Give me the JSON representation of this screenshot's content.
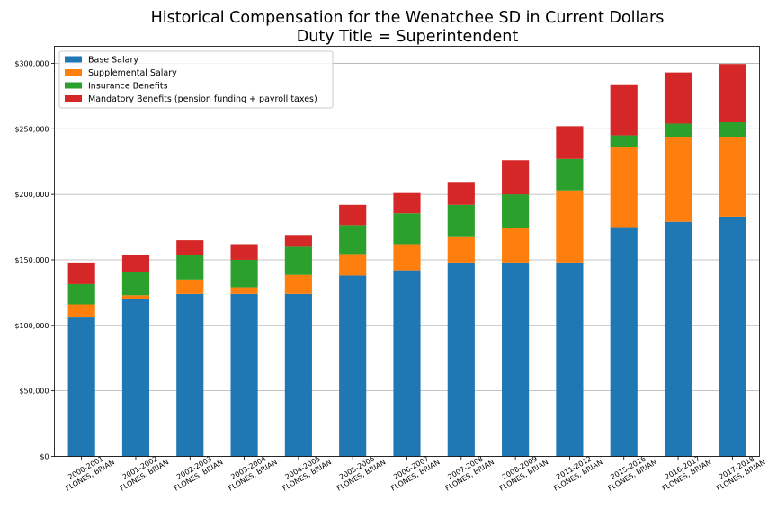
{
  "chart_data": {
    "type": "bar",
    "stacked": true,
    "title": "Historical Compensation for the Wenatchee SD in Current Dollars",
    "subtitle": "Duty Title = Superintendent",
    "xlabel": "",
    "ylabel": "",
    "ylim": [
      0,
      313000
    ],
    "yticks": [
      0,
      50000,
      100000,
      150000,
      200000,
      250000,
      300000
    ],
    "ytick_labels": [
      "$0",
      "$50,000",
      "$100,000",
      "$150,000",
      "$200,000",
      "$250,000",
      "$300,000"
    ],
    "grid": "horizontal",
    "legend_position": "top-left",
    "categories": [
      [
        "2000-2001",
        "FLONES, BRIAN"
      ],
      [
        "2001-2002",
        "FLONES, BRIAN"
      ],
      [
        "2002-2003",
        "FLONES, BRIAN"
      ],
      [
        "2003-2004",
        "FLONES, BRIAN"
      ],
      [
        "2004-2005",
        "FLONES, BRIAN"
      ],
      [
        "2005-2006",
        "FLONES, BRIAN"
      ],
      [
        "2006-2007",
        "FLONES, BRIAN"
      ],
      [
        "2007-2008",
        "FLONES, BRIAN"
      ],
      [
        "2008-2009",
        "FLONES, BRIAN"
      ],
      [
        "2011-2012",
        "FLONES, BRIAN"
      ],
      [
        "2015-2016",
        "FLONES, BRIAN"
      ],
      [
        "2016-2017",
        "FLONES, BRIAN"
      ],
      [
        "2017-2018",
        "FLONES, BRIAN"
      ]
    ],
    "series": [
      {
        "name": "Base Salary",
        "color": "#1f77b4",
        "values": [
          106000,
          120000,
          124000,
          124000,
          124000,
          138000,
          142000,
          148000,
          148000,
          148000,
          175000,
          179000,
          183000
        ]
      },
      {
        "name": "Supplemental Salary",
        "color": "#ff7f0e",
        "values": [
          10000,
          3000,
          11000,
          5000,
          14500,
          16500,
          20000,
          20000,
          26000,
          55000,
          61000,
          65000,
          61000
        ]
      },
      {
        "name": "Insurance Benefits",
        "color": "#2ca02c",
        "values": [
          15500,
          18000,
          19000,
          21000,
          21500,
          22000,
          23500,
          24000,
          26000,
          24000,
          9000,
          10000,
          11000
        ]
      },
      {
        "name": "Mandatory Benefits (pension funding + payroll taxes)",
        "color": "#d62728",
        "values": [
          16500,
          13000,
          11000,
          12000,
          9000,
          15500,
          15500,
          17500,
          26000,
          25000,
          39000,
          39000,
          44500
        ]
      }
    ]
  }
}
